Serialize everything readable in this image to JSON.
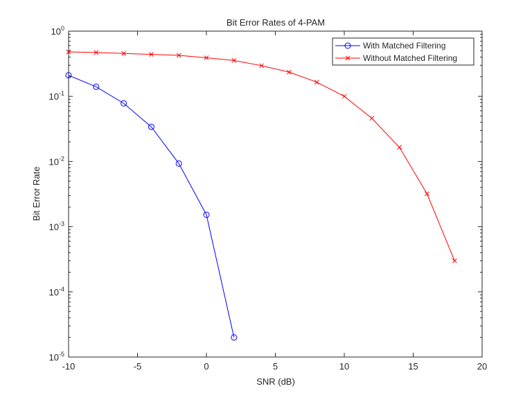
{
  "chart_data": {
    "type": "line",
    "title": "Bit Error Rates of 4-PAM",
    "xlabel": "SNR (dB)",
    "ylabel": "Bit Error Rate",
    "xlim": [
      -10,
      20
    ],
    "ylim": [
      1e-05,
      1
    ],
    "yscale": "log",
    "grid": false,
    "legend_position": "top-right",
    "x_ticks": [
      {
        "value": -10,
        "label": "-10"
      },
      {
        "value": -5,
        "label": "-5"
      },
      {
        "value": 0,
        "label": "0"
      },
      {
        "value": 5,
        "label": "5"
      },
      {
        "value": 10,
        "label": "10"
      },
      {
        "value": 15,
        "label": "15"
      },
      {
        "value": 20,
        "label": "20"
      }
    ],
    "y_ticks": [
      {
        "value": 1,
        "base": "10",
        "exp": "0"
      },
      {
        "value": 0.1,
        "base": "10",
        "exp": "-1"
      },
      {
        "value": 0.01,
        "base": "10",
        "exp": "-2"
      },
      {
        "value": 0.001,
        "base": "10",
        "exp": "-3"
      },
      {
        "value": 0.0001,
        "base": "10",
        "exp": "-4"
      },
      {
        "value": 1e-05,
        "base": "10",
        "exp": "-5"
      }
    ],
    "series": [
      {
        "name": "With Matched Filtering",
        "color": "#0000ff",
        "marker": "circle",
        "x": [
          -10,
          -8,
          -6,
          -4,
          -2,
          0,
          2
        ],
        "y": [
          0.21,
          0.14,
          0.078,
          0.034,
          0.0093,
          0.00152,
          2e-05
        ]
      },
      {
        "name": "Without Matched Filtering",
        "color": "#ff0000",
        "marker": "x",
        "x": [
          -10,
          -8,
          -6,
          -4,
          -2,
          0,
          2,
          4,
          6,
          8,
          10,
          12,
          14,
          16,
          18
        ],
        "y": [
          0.48,
          0.47,
          0.455,
          0.44,
          0.425,
          0.39,
          0.355,
          0.295,
          0.235,
          0.165,
          0.1,
          0.046,
          0.0165,
          0.0032,
          0.0003
        ]
      }
    ]
  }
}
